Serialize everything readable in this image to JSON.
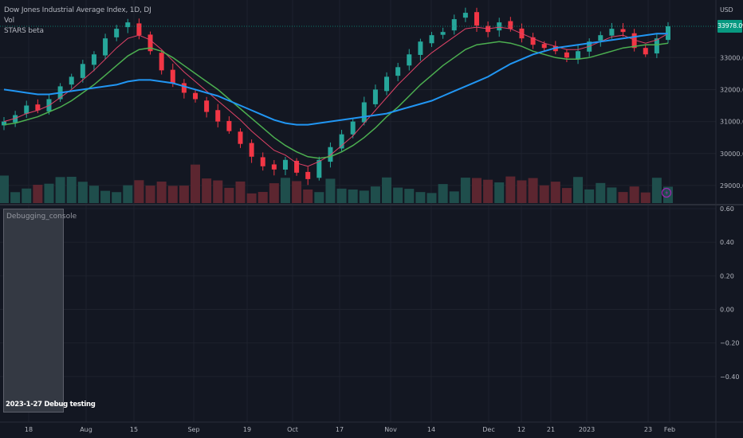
{
  "legend": {
    "symbol": "Dow Jones Industrial Average Index, 1D, DJ",
    "vol": "Vol",
    "indicator": "STARS beta"
  },
  "currency": "USD",
  "last_price": "33978.09",
  "main_axis": {
    "ticks": [
      "33000.00",
      "32000.00",
      "31000.00",
      "30000.00",
      "29000.00"
    ]
  },
  "pane_axis": {
    "ticks": [
      "0.60",
      "0.40",
      "0.20",
      "0.00",
      "−0.20",
      "−0.40"
    ]
  },
  "x_axis": {
    "ticks": [
      "18",
      "Aug",
      "15",
      "Sep",
      "19",
      "Oct",
      "17",
      "Nov",
      "14",
      "Dec",
      "12",
      "21",
      "2023",
      "23",
      "Feb"
    ]
  },
  "debug_panel": {
    "title": "Debugging_console",
    "message": "2023-1-27 Debug testing"
  },
  "colors": {
    "bg": "#131722",
    "grid": "#1e222d",
    "up": "#26a69a",
    "down": "#f23645",
    "vol_up": "#1f4e4c",
    "vol_down": "#5c2630",
    "fast_ma": "#e04367",
    "mid_ma": "#4caf50",
    "slow_ma": "#2196f3",
    "price_line": "#089981",
    "axis_text": "#b2b5be"
  },
  "chart_data": {
    "type": "candlestick",
    "title": "Dow Jones Industrial Average Index, 1D, DJ",
    "y_range": [
      28400,
      34800
    ],
    "pane_y_range": [
      -0.6,
      0.6
    ],
    "series": [
      {
        "name": "Close (approx., sampled)",
        "values": [
          31000,
          31200,
          31500,
          31350,
          31700,
          32100,
          32400,
          32800,
          33100,
          33600,
          33900,
          34100,
          33700,
          33200,
          32600,
          32200,
          31900,
          31700,
          31300,
          31000,
          30700,
          30300,
          29900,
          29600,
          29500,
          29800,
          29400,
          29200,
          29800,
          30200,
          30600,
          31000,
          31600,
          32000,
          32400,
          32700,
          33100,
          33500,
          33700,
          33800,
          34200,
          34400,
          34000,
          33800,
          34100,
          33900,
          33600,
          33400,
          33300,
          33200,
          33000,
          33200,
          33500,
          33700,
          33900,
          33800,
          33300,
          33100,
          33600,
          33978
        ]
      },
      {
        "name": "STARS fast MA (approx.)",
        "values": [
          31000,
          31100,
          31250,
          31350,
          31500,
          31750,
          32000,
          32300,
          32600,
          32950,
          33300,
          33600,
          33700,
          33550,
          33250,
          32900,
          32550,
          32250,
          31950,
          31650,
          31350,
          31050,
          30700,
          30400,
          30100,
          29950,
          29700,
          29600,
          29750,
          29950,
          30250,
          30550,
          30950,
          31350,
          31750,
          32150,
          32500,
          32850,
          33150,
          33400,
          33650,
          33900,
          33950,
          33900,
          33950,
          33900,
          33750,
          33600,
          33450,
          33350,
          33250,
          33250,
          33350,
          33500,
          33650,
          33700,
          33550,
          33450,
          33550,
          33750
        ]
      },
      {
        "name": "STARS mid MA (approx.)",
        "values": [
          30900,
          30950,
          31050,
          31150,
          31300,
          31450,
          31650,
          31900,
          32150,
          32450,
          32750,
          33050,
          33250,
          33300,
          33200,
          33000,
          32750,
          32500,
          32250,
          32000,
          31700,
          31400,
          31100,
          30800,
          30500,
          30250,
          30050,
          29900,
          29850,
          29900,
          30050,
          30250,
          30500,
          30800,
          31150,
          31450,
          31800,
          32150,
          32450,
          32750,
          33000,
          33250,
          33400,
          33450,
          33500,
          33450,
          33350,
          33200,
          33100,
          33000,
          32950,
          32950,
          33000,
          33100,
          33200,
          33300,
          33350,
          33400,
          33400,
          33450
        ]
      },
      {
        "name": "STARS slow MA (approx.)",
        "values": [
          32000,
          31950,
          31900,
          31850,
          31850,
          31900,
          31950,
          32000,
          32050,
          32100,
          32150,
          32250,
          32300,
          32300,
          32250,
          32200,
          32100,
          32000,
          31900,
          31800,
          31650,
          31500,
          31350,
          31200,
          31050,
          30950,
          30900,
          30900,
          30950,
          31000,
          31050,
          31100,
          31150,
          31200,
          31250,
          31350,
          31450,
          31550,
          31650,
          31800,
          31950,
          32100,
          32250,
          32400,
          32600,
          32800,
          32950,
          33100,
          33200,
          33300,
          33350,
          33400,
          33450,
          33500,
          33550,
          33600,
          33650,
          33700,
          33750,
          33750
        ]
      }
    ]
  }
}
